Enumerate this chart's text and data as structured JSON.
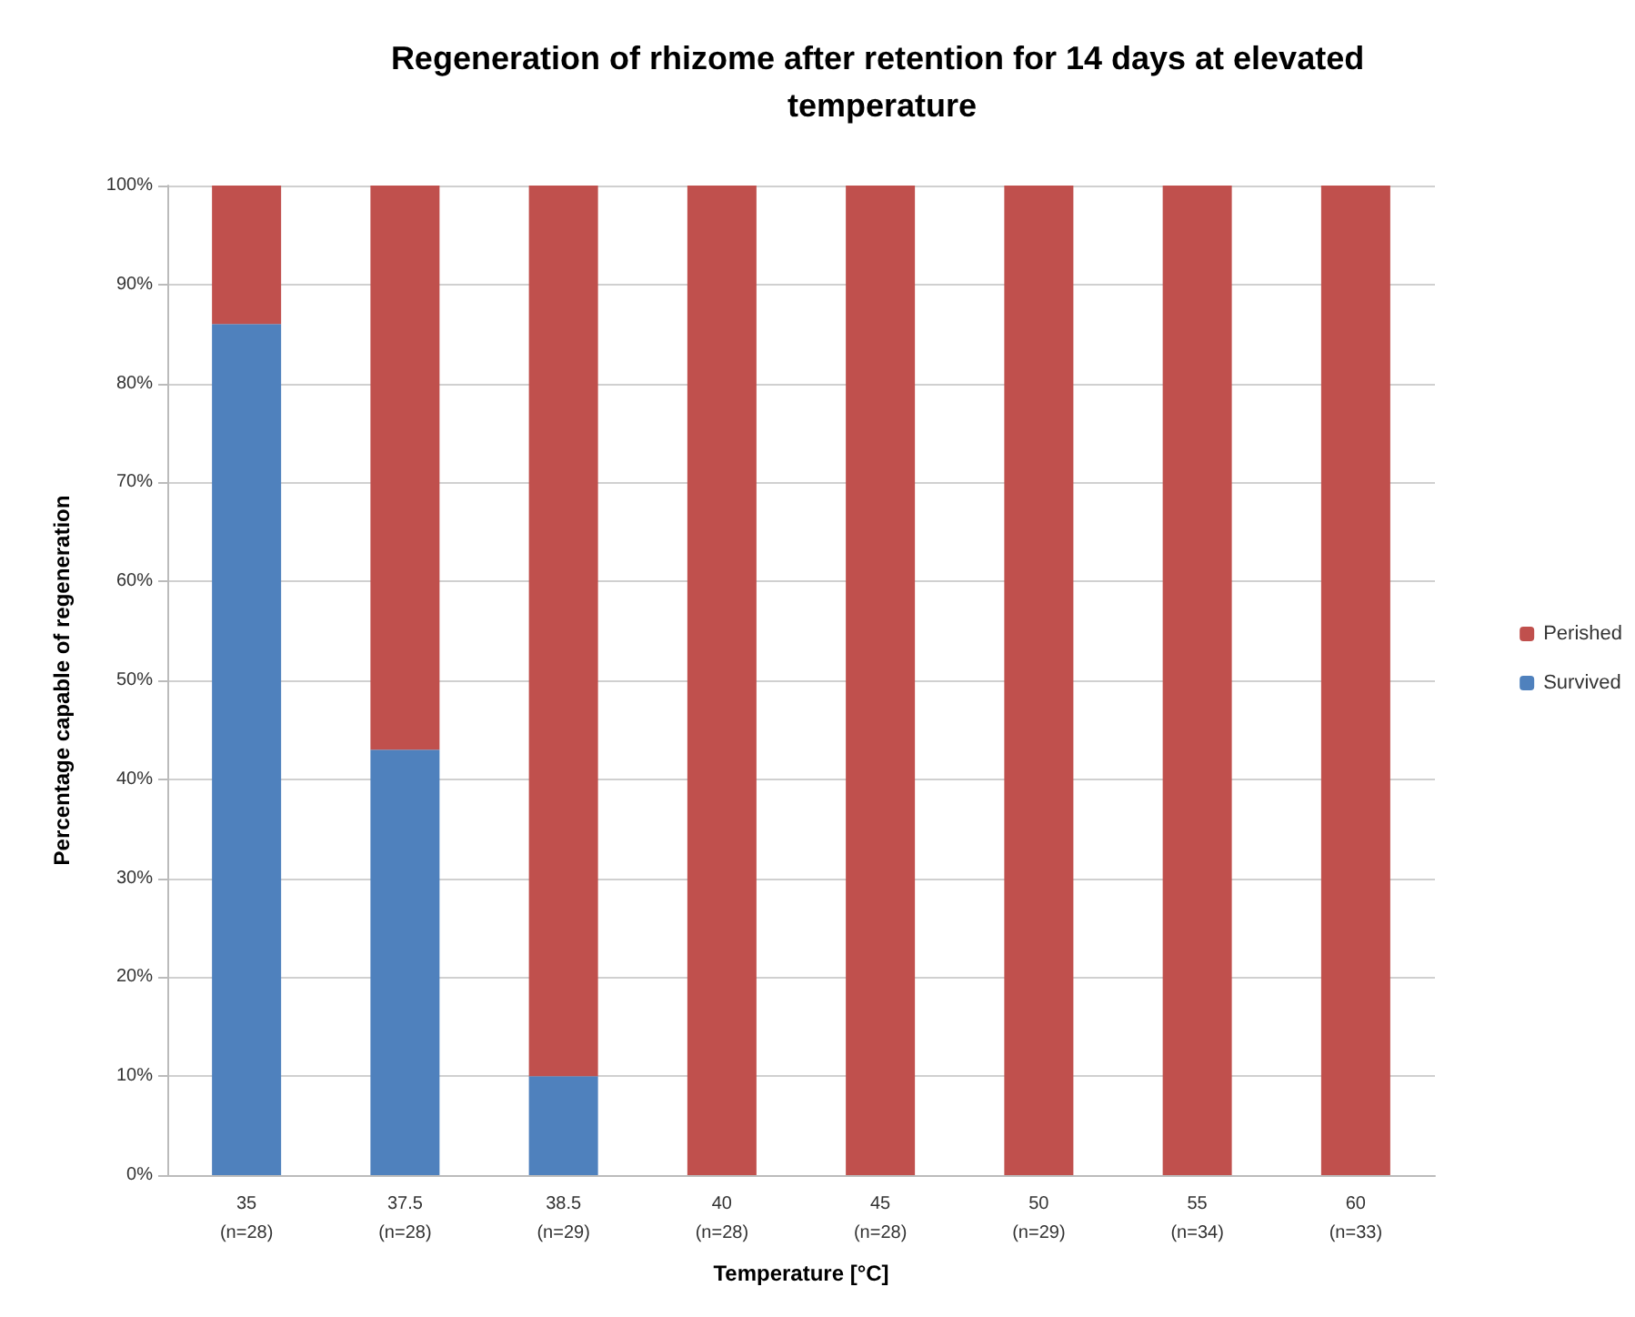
{
  "chart_data": {
    "type": "bar",
    "stacked": true,
    "title": "Regeneration of rhizome after retention for 14 days at elevated temperature",
    "xlabel": "Temperature [°C]",
    "ylabel": "Percentage capable of regeneration",
    "categories": [
      "35\n(n=28)",
      "37.5\n(n=28)",
      "38.5\n(n=29)",
      "40\n(n=28)",
      "45\n(n=28)",
      "50\n(n=29)",
      "55\n(n=34)",
      "60\n(n=33)"
    ],
    "series": [
      {
        "name": "Survived",
        "color": "#4f81bd",
        "values": [
          86,
          43,
          10,
          0,
          0,
          0,
          0,
          0
        ]
      },
      {
        "name": "Perished",
        "color": "#c0504d",
        "values": [
          14,
          57,
          90,
          100,
          100,
          100,
          100,
          100
        ]
      }
    ],
    "ylim": [
      0,
      100
    ],
    "yticks": [
      {
        "value": 0,
        "label": "0%"
      },
      {
        "value": 10,
        "label": "10%"
      },
      {
        "value": 20,
        "label": "20%"
      },
      {
        "value": 30,
        "label": "30%"
      },
      {
        "value": 40,
        "label": "40%"
      },
      {
        "value": 50,
        "label": "50%"
      },
      {
        "value": 60,
        "label": "60%"
      },
      {
        "value": 70,
        "label": "70%"
      },
      {
        "value": 80,
        "label": "80%"
      },
      {
        "value": 90,
        "label": "90%"
      },
      {
        "value": 100,
        "label": "100%"
      }
    ],
    "grid": "y",
    "legend": "right"
  }
}
